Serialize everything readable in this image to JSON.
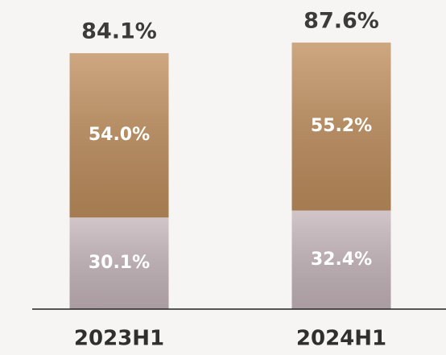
{
  "chart_data": {
    "type": "stacked-bar",
    "categories": [
      "2023H1",
      "2024H1"
    ],
    "series": [
      {
        "color": "#c6b6bb",
        "values": [
          30.1,
          32.4
        ],
        "value_labels": [
          "30.1%",
          "32.4%"
        ]
      },
      {
        "color": "#c08f5e",
        "values": [
          54.0,
          55.2
        ],
        "value_labels": [
          "54.0%",
          "55.2%"
        ]
      }
    ],
    "totals": {
      "values": [
        84.1,
        87.6
      ],
      "value_labels": [
        "84.1%",
        "87.6%"
      ]
    }
  }
}
